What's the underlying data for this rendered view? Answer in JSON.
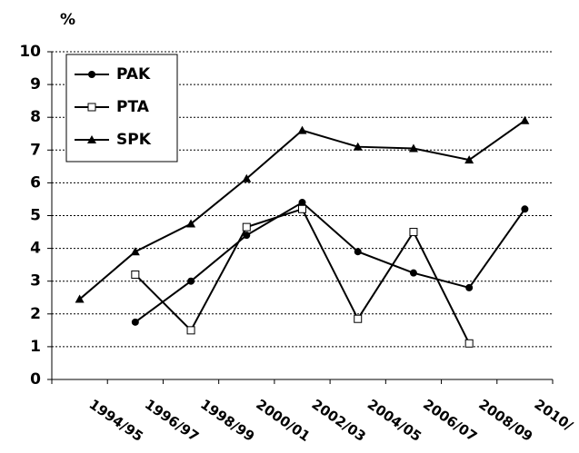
{
  "chart_data": {
    "type": "line",
    "y_label": "%",
    "categories": [
      "1994/95",
      "1996/97",
      "1998/99",
      "2000/01",
      "2002/03",
      "2004/05",
      "2006/07",
      "2008/09",
      "2010/"
    ],
    "series": [
      {
        "name": "PAK",
        "color": "#000000",
        "marker": "circle",
        "values": [
          null,
          1.75,
          3.0,
          4.4,
          5.4,
          3.9,
          3.25,
          2.8,
          5.2
        ]
      },
      {
        "name": "PTA",
        "color": "#000000",
        "marker": "square",
        "values": [
          null,
          3.2,
          1.5,
          4.65,
          5.2,
          1.85,
          4.5,
          1.1,
          null
        ]
      },
      {
        "name": "SPK",
        "color": "#000000",
        "marker": "triangle",
        "values": [
          2.45,
          3.9,
          4.75,
          6.13,
          7.6,
          7.1,
          7.05,
          6.7,
          7.9
        ]
      }
    ],
    "ylim": [
      0,
      10
    ],
    "yticks": [
      0,
      1,
      2,
      3,
      4,
      5,
      6,
      7,
      8,
      9,
      10
    ],
    "grid": true,
    "legend": "top-left"
  }
}
